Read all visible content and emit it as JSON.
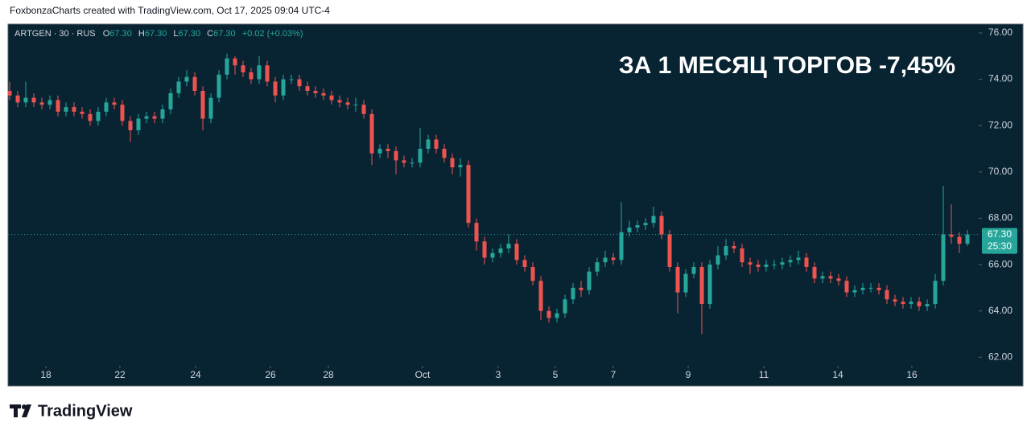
{
  "chart_data": {
    "type": "candlestick",
    "credit": "FoxbonzaCharts created with TradingView.com, Oct 17, 2025 09:04 UTC-4",
    "legend": {
      "symbol": "ARTGEN · 30 · RUS",
      "o_label": "O",
      "open": "67.30",
      "h_label": "H",
      "high": "67.30",
      "l_label": "L",
      "low": "67.30",
      "c_label": "C",
      "close": "67.30",
      "change": "+0.02 (+0.03%)"
    },
    "annotation": "ЗА 1 МЕСЯЦ ТОРГОВ -7,45%",
    "last_price": {
      "value": 67.3,
      "label": "67.30"
    },
    "countdown": "25:30",
    "logo": "TradingView",
    "up_color": "#26a69a",
    "down_color": "#ef5350",
    "xlim": [
      -0.2,
      120.4
    ],
    "xticks": [
      {
        "value": 4.5,
        "label": "18"
      },
      {
        "value": 13.7,
        "label": "22"
      },
      {
        "value": 23.1,
        "label": "24"
      },
      {
        "value": 32.4,
        "label": "26"
      },
      {
        "value": 39.6,
        "label": "28"
      },
      {
        "value": 51.3,
        "label": "Oct"
      },
      {
        "value": 60.7,
        "label": "3"
      },
      {
        "value": 67.8,
        "label": "5"
      },
      {
        "value": 75.0,
        "label": "7"
      },
      {
        "value": 84.3,
        "label": "9"
      },
      {
        "value": 93.7,
        "label": "11"
      },
      {
        "value": 102.9,
        "label": "14"
      },
      {
        "value": 112.1,
        "label": "16"
      }
    ],
    "ylim": [
      61.63,
      76.38
    ],
    "yticks": [
      {
        "value": 62,
        "label": "62.00"
      },
      {
        "value": 64,
        "label": "64.00"
      },
      {
        "value": 66,
        "label": "66.00"
      },
      {
        "value": 68,
        "label": "68.00"
      },
      {
        "value": 70,
        "label": "70.00"
      },
      {
        "value": 72,
        "label": "72.00"
      },
      {
        "value": 74,
        "label": "74.00"
      },
      {
        "value": 76,
        "label": "76.00"
      }
    ],
    "open": [
      73.5,
      73.3,
      73.0,
      73.2,
      73.0,
      72.9,
      73.1,
      72.6,
      72.8,
      72.6,
      72.5,
      72.2,
      72.6,
      73.0,
      72.9,
      72.2,
      71.8,
      72.3,
      72.4,
      72.3,
      72.7,
      73.4,
      73.9,
      74.1,
      73.5,
      72.3,
      73.2,
      74.2,
      74.9,
      74.6,
      74.3,
      74.0,
      74.6,
      73.9,
      73.3,
      74.0,
      74.0,
      73.7,
      73.5,
      73.4,
      73.3,
      73.1,
      73.0,
      72.9,
      72.9,
      72.5,
      70.8,
      71.0,
      70.9,
      70.5,
      70.4,
      70.4,
      71.0,
      71.4,
      71.0,
      70.6,
      70.2,
      70.3,
      67.8,
      67.0,
      66.3,
      66.5,
      66.7,
      66.9,
      66.2,
      65.9,
      65.3,
      64.0,
      63.7,
      63.9,
      64.5,
      65.0,
      64.9,
      65.7,
      66.1,
      66.3,
      66.2,
      67.4,
      67.6,
      67.7,
      67.8,
      68.1,
      67.3,
      65.9,
      64.8,
      65.6,
      65.9,
      64.3,
      66.0,
      66.4,
      66.8,
      66.7,
      66.1,
      66.0,
      65.9,
      66.0,
      66.0,
      66.1,
      66.2,
      66.3,
      65.9,
      65.4,
      65.5,
      65.4,
      65.3,
      64.8,
      64.9,
      65.0,
      65.0,
      64.9,
      64.5,
      64.4,
      64.3,
      64.4,
      64.2,
      64.3,
      65.3,
      67.3,
      67.2,
      66.9
    ],
    "high": [
      73.9,
      73.5,
      73.9,
      73.4,
      73.2,
      73.3,
      73.3,
      73.0,
      73.0,
      72.8,
      72.7,
      72.8,
      73.2,
      73.2,
      73.1,
      72.4,
      72.5,
      72.6,
      72.6,
      72.9,
      73.6,
      74.1,
      74.4,
      74.3,
      73.7,
      73.4,
      74.4,
      75.1,
      75.0,
      74.8,
      74.5,
      75.0,
      74.8,
      74.1,
      74.2,
      74.2,
      74.2,
      73.9,
      73.7,
      73.6,
      73.5,
      73.3,
      73.2,
      73.2,
      73.1,
      72.7,
      71.2,
      71.2,
      71.1,
      70.7,
      70.6,
      71.9,
      71.6,
      71.6,
      71.2,
      70.8,
      70.6,
      70.5,
      68.0,
      67.2,
      66.7,
      66.9,
      67.3,
      67.1,
      66.4,
      66.1,
      65.5,
      64.2,
      64.1,
      64.7,
      65.2,
      65.3,
      65.9,
      66.3,
      66.6,
      66.5,
      68.7,
      67.9,
      67.9,
      68.0,
      68.5,
      68.3,
      67.5,
      66.1,
      65.8,
      66.1,
      66.1,
      66.2,
      66.8,
      67.1,
      67.0,
      66.9,
      66.3,
      66.2,
      66.2,
      66.2,
      66.3,
      66.4,
      66.6,
      66.5,
      66.1,
      65.7,
      65.7,
      65.6,
      65.5,
      65.1,
      65.2,
      65.2,
      65.2,
      65.1,
      64.7,
      64.6,
      64.6,
      64.6,
      64.5,
      65.6,
      69.4,
      68.6,
      67.4,
      67.5
    ],
    "low": [
      73.1,
      72.8,
      72.8,
      72.8,
      72.7,
      72.7,
      72.4,
      72.4,
      72.4,
      72.3,
      72.0,
      72.0,
      72.4,
      72.7,
      72.0,
      71.3,
      71.6,
      72.1,
      72.1,
      72.1,
      72.5,
      73.2,
      73.7,
      73.3,
      71.8,
      72.1,
      73.0,
      74.0,
      74.2,
      74.1,
      73.8,
      73.8,
      73.7,
      73.0,
      73.1,
      73.8,
      73.5,
      73.3,
      73.2,
      73.1,
      72.9,
      72.8,
      72.7,
      72.6,
      72.3,
      70.3,
      70.6,
      70.6,
      69.9,
      70.2,
      70.2,
      70.2,
      70.8,
      70.8,
      70.4,
      69.9,
      69.8,
      67.6,
      66.6,
      66.0,
      66.1,
      66.3,
      66.5,
      66.0,
      65.7,
      65.1,
      63.6,
      63.5,
      63.5,
      63.7,
      64.3,
      64.6,
      64.7,
      65.5,
      65.9,
      66.0,
      66.0,
      67.2,
      67.4,
      67.5,
      67.6,
      67.1,
      65.7,
      63.9,
      64.6,
      65.4,
      63.0,
      64.1,
      65.8,
      66.2,
      66.5,
      65.9,
      65.6,
      65.7,
      65.7,
      65.8,
      65.8,
      65.9,
      66.0,
      65.7,
      65.2,
      65.2,
      65.2,
      65.1,
      64.6,
      64.6,
      64.7,
      64.8,
      64.7,
      64.3,
      64.2,
      64.1,
      64.1,
      64.0,
      64.0,
      64.1,
      65.1,
      66.9,
      66.5,
      66.8
    ],
    "close": [
      73.3,
      73.0,
      73.2,
      73.0,
      72.9,
      73.1,
      72.6,
      72.8,
      72.6,
      72.5,
      72.2,
      72.6,
      73.0,
      72.9,
      72.2,
      71.8,
      72.3,
      72.4,
      72.3,
      72.7,
      73.4,
      73.9,
      74.1,
      73.5,
      72.3,
      73.2,
      74.2,
      74.9,
      74.6,
      74.3,
      74.0,
      74.6,
      73.9,
      73.3,
      74.0,
      74.0,
      73.7,
      73.5,
      73.4,
      73.3,
      73.1,
      73.0,
      72.9,
      72.9,
      72.5,
      70.8,
      71.0,
      70.9,
      70.5,
      70.4,
      70.4,
      71.0,
      71.4,
      71.0,
      70.6,
      70.2,
      70.3,
      67.8,
      67.0,
      66.3,
      66.5,
      66.7,
      66.9,
      66.2,
      65.9,
      65.3,
      64.0,
      63.7,
      63.9,
      64.5,
      65.0,
      64.9,
      65.7,
      66.1,
      66.3,
      66.2,
      67.4,
      67.6,
      67.7,
      67.8,
      68.1,
      67.3,
      65.9,
      64.8,
      65.6,
      65.9,
      64.3,
      66.0,
      66.4,
      66.8,
      66.7,
      66.1,
      66.0,
      65.9,
      66.0,
      66.0,
      66.1,
      66.2,
      66.3,
      65.9,
      65.4,
      65.5,
      65.4,
      65.3,
      64.8,
      64.9,
      65.0,
      65.0,
      64.9,
      64.5,
      64.4,
      64.3,
      64.4,
      64.2,
      64.3,
      65.3,
      67.3,
      67.2,
      66.9,
      67.3
    ]
  }
}
